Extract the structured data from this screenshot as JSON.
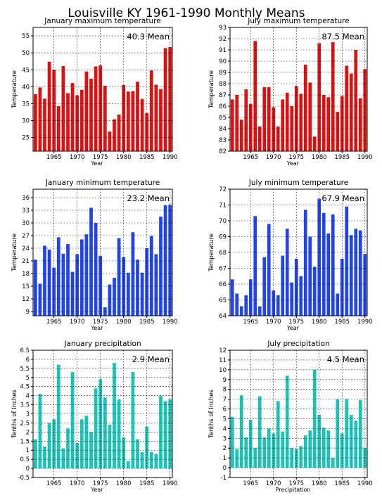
{
  "figure": {
    "title": "Louisville KY   1961-1990 Monthly Means"
  },
  "chart_data": [
    {
      "type": "bar",
      "title": "January maximum temperature",
      "ylabel": "Temperature",
      "xlabel": "Year",
      "color": "#e01010",
      "ylim": [
        21,
        57.5
      ],
      "yticks": [
        25,
        30,
        35,
        40,
        45,
        50,
        55
      ],
      "ytick_labels": [
        "25",
        "30",
        "35",
        "40",
        "45",
        "50",
        "55"
      ],
      "xlim": [
        1960.5,
        1990.5
      ],
      "xticks": [
        1965,
        1970,
        1975,
        1980,
        1985,
        1990
      ],
      "xtick_labels": [
        "1965",
        "1970",
        "1975",
        "1980",
        "1985",
        "1990"
      ],
      "mean_label": "40.3 Mean",
      "x": [
        1961,
        1962,
        1963,
        1964,
        1965,
        1966,
        1967,
        1968,
        1969,
        1970,
        1971,
        1972,
        1973,
        1974,
        1975,
        1976,
        1977,
        1978,
        1979,
        1980,
        1981,
        1982,
        1983,
        1984,
        1985,
        1986,
        1987,
        1988,
        1989,
        1990
      ],
      "values": [
        37.8,
        39.8,
        36.5,
        47.4,
        45.0,
        34.3,
        46.1,
        38.1,
        41.1,
        37.5,
        39.1,
        44.5,
        42.4,
        46.0,
        46.3,
        40.3,
        26.8,
        30.4,
        31.8,
        40.5,
        38.6,
        38.7,
        41.5,
        36.4,
        32.2,
        44.8,
        40.6,
        39.3,
        51.4,
        51.7
      ]
    },
    {
      "type": "bar",
      "title": "July maximum temperature",
      "ylabel": "Temperature",
      "xlabel": "Year",
      "color": "#e01010",
      "ylim": [
        82,
        93
      ],
      "yticks": [
        82,
        83,
        84,
        85,
        86,
        87,
        88,
        89,
        90,
        91,
        92,
        93
      ],
      "ytick_labels": [
        "82",
        "83",
        "84",
        "85",
        "86",
        "87",
        "88",
        "89",
        "90",
        "91",
        "92",
        "93"
      ],
      "xlim": [
        1960.5,
        1990.5
      ],
      "xticks": [
        1965,
        1970,
        1975,
        1980,
        1985,
        1990
      ],
      "xtick_labels": [
        "1965",
        "1970",
        "1975",
        "1980",
        "1985",
        "1990"
      ],
      "mean_label": "87.5 Mean",
      "x": [
        1961,
        1962,
        1963,
        1964,
        1965,
        1966,
        1967,
        1968,
        1969,
        1970,
        1971,
        1972,
        1973,
        1974,
        1975,
        1976,
        1977,
        1978,
        1979,
        1980,
        1981,
        1982,
        1983,
        1984,
        1985,
        1986,
        1987,
        1988,
        1989,
        1990
      ],
      "values": [
        86.6,
        87.0,
        84.8,
        87.5,
        86.2,
        91.8,
        84.2,
        87.7,
        87.7,
        85.9,
        84.2,
        86.6,
        87.2,
        86.0,
        87.8,
        87.1,
        89.7,
        88.1,
        83.3,
        91.6,
        87.0,
        86.8,
        91.7,
        85.5,
        86.9,
        89.6,
        88.9,
        91.0,
        86.7,
        89.3
      ]
    },
    {
      "type": "bar",
      "title": "January minimum temperature",
      "ylabel": "Temperature",
      "xlabel": "Year",
      "color": "#2244ee",
      "ylim": [
        8,
        38
      ],
      "yticks": [
        9,
        12,
        15,
        18,
        21,
        24,
        27,
        30,
        33,
        36
      ],
      "ytick_labels": [
        "9",
        "12",
        "15",
        "18",
        "21",
        "24",
        "27",
        "30",
        "33",
        "36"
      ],
      "xlim": [
        1960.5,
        1990.5
      ],
      "xticks": [
        1965,
        1970,
        1975,
        1980,
        1985,
        1990
      ],
      "xtick_labels": [
        "1965",
        "1970",
        "1975",
        "1980",
        "1985",
        "1990"
      ],
      "mean_label": "23.2 Mean",
      "x": [
        1961,
        1962,
        1963,
        1964,
        1965,
        1966,
        1967,
        1968,
        1969,
        1970,
        1971,
        1972,
        1973,
        1974,
        1975,
        1976,
        1977,
        1978,
        1979,
        1980,
        1981,
        1982,
        1983,
        1984,
        1985,
        1986,
        1987,
        1988,
        1989,
        1990
      ],
      "values": [
        21.3,
        15.6,
        24.6,
        23.7,
        19.4,
        26.6,
        22.7,
        25.0,
        18.4,
        22.6,
        26.1,
        27.3,
        33.6,
        30.0,
        22.2,
        10.0,
        15.4,
        17.0,
        26.4,
        21.9,
        18.2,
        27.8,
        21.3,
        18.2,
        24.0,
        26.9,
        22.6,
        31.5,
        34.2,
        34.3
      ]
    },
    {
      "type": "bar",
      "title": "July minimum temperature",
      "ylabel": "Temperature",
      "xlabel": "Year",
      "color": "#2244ee",
      "ylim": [
        64,
        72
      ],
      "yticks": [
        64,
        65,
        66,
        67,
        68,
        69,
        70,
        71,
        72
      ],
      "ytick_labels": [
        "64",
        "65",
        "66",
        "67",
        "68",
        "69",
        "70",
        "71",
        "72"
      ],
      "xlim": [
        1960.5,
        1990.5
      ],
      "xticks": [
        1965,
        1970,
        1975,
        1980,
        1985,
        1990
      ],
      "xtick_labels": [
        "1965",
        "1970",
        "1975",
        "1980",
        "1985",
        "1990"
      ],
      "mean_label": "67.9 Mean",
      "x": [
        1961,
        1962,
        1963,
        1964,
        1965,
        1966,
        1967,
        1968,
        1969,
        1970,
        1971,
        1972,
        1973,
        1974,
        1975,
        1976,
        1977,
        1978,
        1979,
        1980,
        1981,
        1982,
        1983,
        1984,
        1985,
        1986,
        1987,
        1988,
        1989,
        1990
      ],
      "values": [
        66.3,
        65.4,
        64.6,
        65.3,
        66.3,
        70.3,
        64.6,
        67.7,
        69.8,
        65.6,
        65.3,
        67.8,
        69.5,
        66.1,
        67.6,
        66.5,
        70.7,
        69.0,
        67.1,
        71.4,
        70.5,
        69.2,
        70.4,
        65.4,
        67.6,
        70.9,
        69.1,
        69.5,
        69.4,
        67.9
      ]
    },
    {
      "type": "bar",
      "title": "January precipitation",
      "ylabel": "Tenths of Inches",
      "xlabel": "Year",
      "color": "#18c4b8",
      "ylim": [
        -0.5,
        6.5
      ],
      "yticks": [
        -0.5,
        0,
        0.5,
        1,
        1.5,
        2,
        2.5,
        3,
        3.5,
        4,
        4.5,
        5,
        5.5,
        6,
        6.5
      ],
      "ytick_labels": [
        "-0.5",
        "0",
        "0.5",
        "1",
        "1.5",
        "2",
        "2.5",
        "3",
        "3.5",
        "4",
        "4.5",
        "5",
        "5.5",
        "6",
        "6.5"
      ],
      "xlim": [
        1960.5,
        1990.5
      ],
      "xticks": [
        1965,
        1970,
        1975,
        1980,
        1985,
        1990
      ],
      "xtick_labels": [
        "1965",
        "1970",
        "1975",
        "1980",
        "1985",
        "1990"
      ],
      "mean_label": "2.9 Mean",
      "x": [
        1961,
        1962,
        1963,
        1964,
        1965,
        1966,
        1967,
        1968,
        1969,
        1970,
        1971,
        1972,
        1973,
        1974,
        1975,
        1976,
        1977,
        1978,
        1979,
        1980,
        1981,
        1982,
        1983,
        1984,
        1985,
        1986,
        1987,
        1988,
        1989,
        1990
      ],
      "values": [
        1.6,
        4.1,
        1.2,
        2.5,
        2.7,
        5.7,
        1.1,
        2.2,
        5.3,
        1.4,
        2.7,
        2.9,
        2.0,
        4.4,
        4.9,
        3.9,
        2.4,
        5.8,
        3.8,
        1.7,
        0.4,
        5.3,
        1.6,
        0.9,
        2.3,
        0.9,
        0.8,
        4.0,
        3.7,
        3.8
      ]
    },
    {
      "type": "bar",
      "title": "July precipitation",
      "ylabel": "Tenths of Inches",
      "xlabel": "Precipitation",
      "color": "#18c4b8",
      "ylim": [
        -1,
        12
      ],
      "yticks": [
        -1,
        0,
        1,
        2,
        3,
        4,
        5,
        6,
        7,
        8,
        9,
        10,
        11,
        12
      ],
      "ytick_labels": [
        "-1",
        "0",
        "1",
        "2",
        "3",
        "4",
        "5",
        "6",
        "7",
        "8",
        "9",
        "10",
        "11",
        "12"
      ],
      "xlim": [
        1960.5,
        1990.5
      ],
      "xticks": [
        1965,
        1970,
        1975,
        1980,
        1985,
        1990
      ],
      "xtick_labels": [
        "1965",
        "1970",
        "1975",
        "1980",
        "1985",
        "1990"
      ],
      "mean_label": "4.5 Mean",
      "x": [
        1961,
        1962,
        1963,
        1964,
        1965,
        1966,
        1967,
        1968,
        1969,
        1970,
        1971,
        1972,
        1973,
        1974,
        1975,
        1976,
        1977,
        1978,
        1979,
        1980,
        1981,
        1982,
        1983,
        1984,
        1985,
        1986,
        1987,
        1988,
        1989,
        1990
      ],
      "values": [
        5.2,
        1.9,
        7.4,
        3.1,
        4.9,
        2.0,
        7.3,
        3.1,
        4.0,
        3.5,
        6.8,
        3.7,
        9.4,
        2.0,
        1.9,
        2.2,
        3.3,
        3.8,
        10.0,
        5.4,
        4.1,
        3.8,
        1.0,
        7.0,
        3.5,
        7.0,
        5.4,
        4.8,
        6.9,
        2.0
      ]
    }
  ]
}
